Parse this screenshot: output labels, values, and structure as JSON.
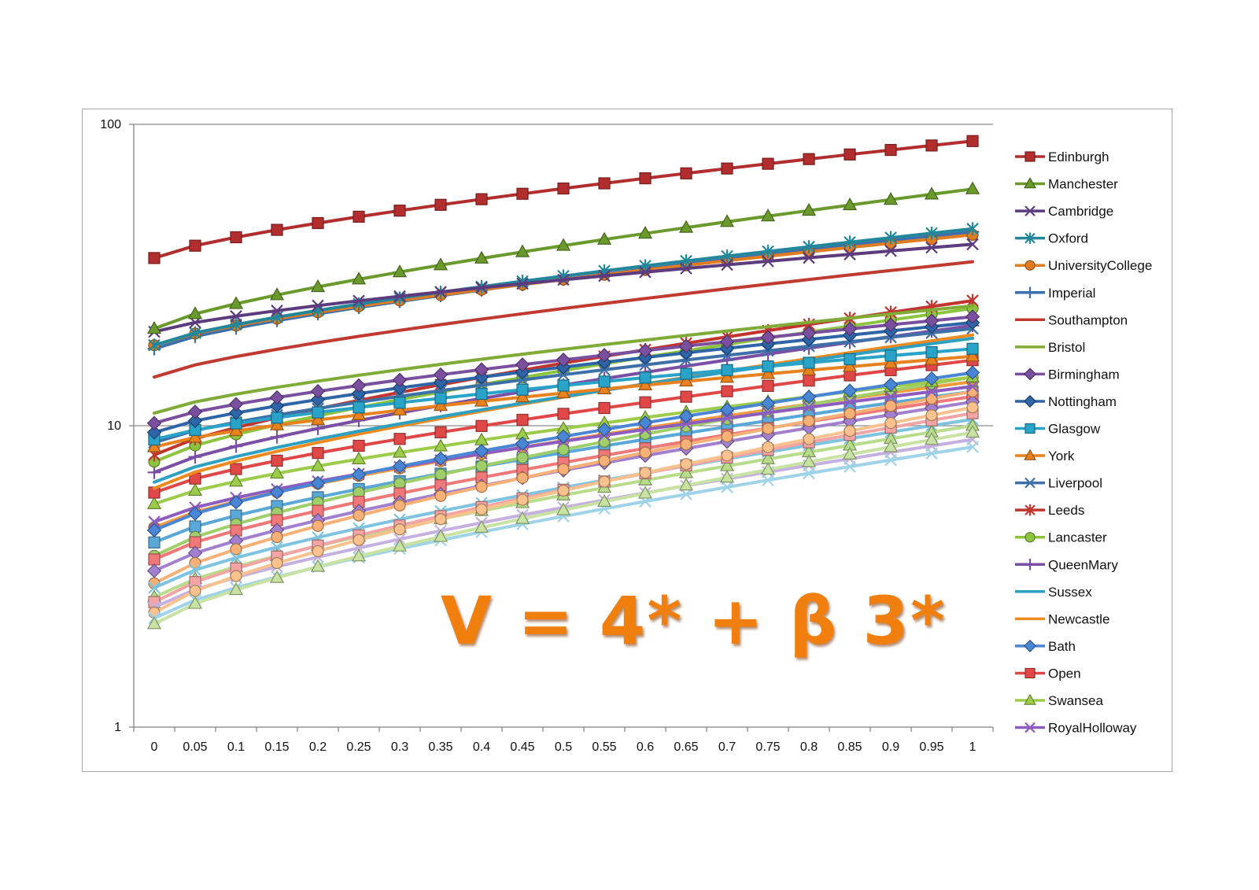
{
  "formula_text": "V = 4* + β 3*",
  "chart_data": {
    "type": "line",
    "x": [
      0,
      0.05,
      0.1,
      0.15,
      0.2,
      0.25,
      0.3,
      0.35,
      0.4,
      0.45,
      0.5,
      0.55,
      0.6,
      0.65,
      0.7,
      0.75,
      0.8,
      0.85,
      0.9,
      0.95,
      1
    ],
    "x_tick_labels": [
      "0",
      "0.05",
      "0.1",
      "0.15",
      "0.2",
      "0.25",
      "0.3",
      "0.35",
      "0.4",
      "0.45",
      "0.5",
      "0.55",
      "0.6",
      "0.65",
      "0.7",
      "0.75",
      "0.8",
      "0.85",
      "0.9",
      "0.95",
      "1"
    ],
    "y_scale": "log",
    "ylim": [
      1,
      100
    ],
    "y_tick_labels": [
      "1",
      "10",
      "100"
    ],
    "grid": "y-major",
    "legend_position": "right",
    "title": "",
    "xlabel": "",
    "ylabel": "",
    "series": [
      {
        "name": "Edinburgh",
        "color": "#b22e2e",
        "marker": "square",
        "start": 36,
        "end": 88
      },
      {
        "name": "Manchester",
        "color": "#6a9a2c",
        "marker": "triangle",
        "start": 21,
        "end": 61
      },
      {
        "name": "Cambridge",
        "color": "#5c3b7e",
        "marker": "x",
        "start": 20.5,
        "end": 40
      },
      {
        "name": "Oxford",
        "color": "#23879c",
        "marker": "star",
        "start": 18.5,
        "end": 45
      },
      {
        "name": "UniversityCollege",
        "color": "#e07c22",
        "marker": "circle",
        "start": 18.5,
        "end": 43
      },
      {
        "name": "Imperial",
        "color": "#3b6fad",
        "marker": "plus",
        "start": 18,
        "end": 44
      },
      {
        "name": "Southampton",
        "color": "#c03a30",
        "marker": "none",
        "start": 14.5,
        "end": 35
      },
      {
        "name": "Bristol",
        "color": "#7fab36",
        "marker": "none",
        "start": 11,
        "end": 25
      },
      {
        "name": "Birmingham",
        "color": "#7a4f9f",
        "marker": "diamond",
        "start": 10.2,
        "end": 23
      },
      {
        "name": "Nottingham",
        "color": "#2e64a8",
        "marker": "diamond",
        "start": 9.5,
        "end": 22
      },
      {
        "name": "Glasgow",
        "color": "#2aa3c8",
        "marker": "square",
        "start": 9,
        "end": 18
      },
      {
        "name": "York",
        "color": "#e8821e",
        "marker": "triangle",
        "start": 8.5,
        "end": 17
      },
      {
        "name": "Liverpool",
        "color": "#3d6fa8",
        "marker": "x",
        "start": 8.8,
        "end": 21
      },
      {
        "name": "Leeds",
        "color": "#c2342e",
        "marker": "star",
        "start": 8,
        "end": 26
      },
      {
        "name": "Lancaster",
        "color": "#8cc43e",
        "marker": "circle",
        "start": 7.6,
        "end": 24.5
      },
      {
        "name": "QueenMary",
        "color": "#7b4fa5",
        "marker": "plus",
        "start": 7,
        "end": 21.5
      },
      {
        "name": "Sussex",
        "color": "#2ea0c2",
        "marker": "none",
        "start": 6.5,
        "end": 19.5
      },
      {
        "name": "Newcastle",
        "color": "#ef8a1f",
        "marker": "none",
        "start": 6.2,
        "end": 20
      },
      {
        "name": "Bath",
        "color": "#4a86d6",
        "marker": "diamond",
        "start": 4.5,
        "end": 15
      },
      {
        "name": "Open",
        "color": "#e04848",
        "marker": "square",
        "start": 6,
        "end": 16.5
      },
      {
        "name": "Swansea",
        "color": "#9ccc4a",
        "marker": "triangle",
        "start": 5.5,
        "end": 14.5
      },
      {
        "name": "RoyalHolloway",
        "color": "#8c5cc0",
        "marker": "x",
        "start": 4.8,
        "end": 13.5
      }
    ],
    "unlabeled_series": [
      {
        "color": "#f29a3e",
        "marker": "circle",
        "start": 4.6,
        "end": 14
      },
      {
        "color": "#5aa8d8",
        "marker": "square",
        "start": 4.1,
        "end": 13
      },
      {
        "color": "#9fcf6a",
        "marker": "circle",
        "start": 3.7,
        "end": 14.5
      },
      {
        "color": "#f07878",
        "marker": "square",
        "start": 3.6,
        "end": 12.5
      },
      {
        "color": "#a37fcf",
        "marker": "diamond",
        "start": 3.3,
        "end": 12
      },
      {
        "color": "#f7b076",
        "marker": "circle",
        "start": 3.0,
        "end": 13
      },
      {
        "color": "#7ec4e0",
        "marker": "x",
        "start": 2.9,
        "end": 10.5
      },
      {
        "color": "#b9dc8a",
        "marker": "triangle",
        "start": 2.7,
        "end": 10
      },
      {
        "color": "#f4a4a4",
        "marker": "square",
        "start": 2.6,
        "end": 11
      },
      {
        "color": "#c5b0e0",
        "marker": "x",
        "start": 2.5,
        "end": 9
      },
      {
        "color": "#f8c18d",
        "marker": "circle",
        "start": 2.4,
        "end": 11.5
      },
      {
        "color": "#9fd3e8",
        "marker": "x",
        "start": 2.3,
        "end": 8.5
      },
      {
        "color": "#c8e3a1",
        "marker": "triangle",
        "start": 2.2,
        "end": 9.5
      }
    ]
  }
}
